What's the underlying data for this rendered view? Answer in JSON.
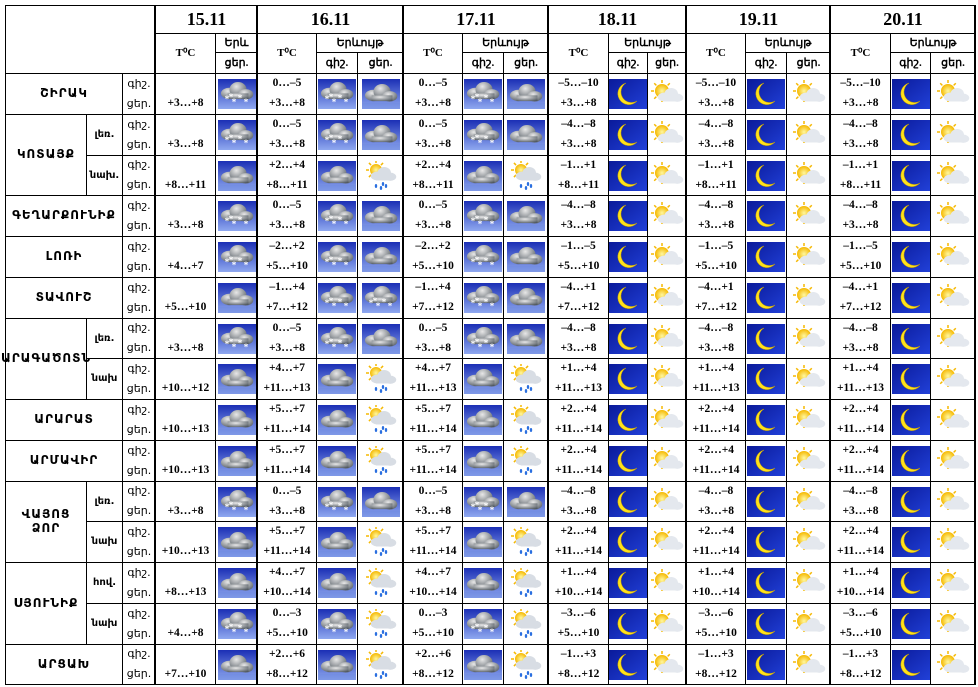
{
  "dates": [
    {
      "date": "15.11",
      "temp": "T⁰C",
      "phen": "Երև",
      "day": "ցեր."
    },
    {
      "date": "16.11",
      "temp": "T⁰C",
      "phen": "Երևույթ",
      "night": "գիշ.",
      "day": "ցեր."
    },
    {
      "date": "17.11",
      "temp": "T⁰C",
      "phen": "Երևույթ",
      "night": "գիշ.",
      "day": "ցեր."
    },
    {
      "date": "18.11",
      "temp": "T⁰C",
      "phen": "Երևույթ",
      "night": "գիշ.",
      "day": "ցեր."
    },
    {
      "date": "19.11",
      "temp": "T⁰C",
      "phen": "Երևույթ",
      "night": "գիշ.",
      "day": "ցեր."
    },
    {
      "date": "20.11",
      "temp": "T⁰C",
      "phen": "Երևույթ",
      "night": "գիշ.",
      "day": "ցեր."
    }
  ],
  "regions": [
    {
      "name": "ՇԻՐԱԿ",
      "parts": [
        {
          "labels": [
            "գիշ.",
            "ցեր."
          ],
          "t15": "+3…+8",
          "temps": [
            [
              "0…–5",
              "+3…+8"
            ],
            [
              "0…–5",
              "+3…+8"
            ],
            [
              "–5…–10",
              "+3…+8"
            ],
            [
              "–5…–10",
              "+3…+8"
            ],
            [
              "–5…–10",
              "+3…+8"
            ]
          ]
        }
      ]
    },
    {
      "name": "ԿՈՏԱՅՔ",
      "parts": [
        {
          "zone": "լեռ.",
          "labels": [
            "գիշ.",
            "ցեր."
          ],
          "t15": "+3…+8",
          "temps": [
            [
              "0…–5",
              "+3…+8"
            ],
            [
              "0…–5",
              "+3…+8"
            ],
            [
              "–4…–8",
              "+3…+8"
            ],
            [
              "–4…–8",
              "+3…+8"
            ],
            [
              "–4…–8",
              "+3…+8"
            ]
          ]
        },
        {
          "zone": "նախ.",
          "labels": [
            "գիշ.",
            "ցեր."
          ],
          "t15": "+8…+11",
          "temps": [
            [
              "+2…+4",
              "+8…+11"
            ],
            [
              "+2…+4",
              "+8…+11"
            ],
            [
              "–1…+1",
              "+8…+11"
            ],
            [
              "–1…+1",
              "+8…+11"
            ],
            [
              "–1…+1",
              "+8…+11"
            ]
          ]
        }
      ]
    },
    {
      "name": "ԳԵՂԱՐՔՈՒՆԻՔ",
      "parts": [
        {
          "labels": [
            "գիշ.",
            "ցեր."
          ],
          "t15": "+3…+8",
          "temps": [
            [
              "0…–5",
              "+3…+8"
            ],
            [
              "0…–5",
              "+3…+8"
            ],
            [
              "–4…–8",
              "+3…+8"
            ],
            [
              "–4…–8",
              "+3…+8"
            ],
            [
              "–4…–8",
              "+3…+8"
            ]
          ]
        }
      ]
    },
    {
      "name": "ԼՈՌԻ",
      "parts": [
        {
          "labels": [
            "գիշ.",
            "ցեր."
          ],
          "t15": "+4…+7",
          "temps": [
            [
              "–2…+2",
              "+5…+10"
            ],
            [
              "–2…+2",
              "+5…+10"
            ],
            [
              "–1…–5",
              "+5…+10"
            ],
            [
              "–1…–5",
              "+5…+10"
            ],
            [
              "–1…–5",
              "+5…+10"
            ]
          ]
        }
      ]
    },
    {
      "name": "ՏԱՎՈՒՇ",
      "parts": [
        {
          "labels": [
            "գիշ.",
            "ցեր."
          ],
          "t15": "+5…+10",
          "temps": [
            [
              "–1…+4",
              "+7…+12"
            ],
            [
              "–1…+4",
              "+7…+12"
            ],
            [
              "–4…+1",
              "+7…+12"
            ],
            [
              "–4…+1",
              "+7…+12"
            ],
            [
              "–4…+1",
              "+7…+12"
            ]
          ]
        }
      ]
    },
    {
      "name": "ԱՐԱԳԱԾՈՏՆ",
      "parts": [
        {
          "zone": "լեռ.",
          "labels": [
            "գիշ.",
            "ցեր."
          ],
          "t15": "+3…+8",
          "temps": [
            [
              "0…–5",
              "+3…+8"
            ],
            [
              "0…–5",
              "+3…+8"
            ],
            [
              "–4…–8",
              "+3…+8"
            ],
            [
              "–4…–8",
              "+3…+8"
            ],
            [
              "–4…–8",
              "+3…+8"
            ]
          ]
        },
        {
          "zone": "նախ",
          "labels": [
            "գիշ.",
            "ցեր."
          ],
          "t15": "+10…+12",
          "temps": [
            [
              "+4…+7",
              "+11…+13"
            ],
            [
              "+4…+7",
              "+11…+13"
            ],
            [
              "+1…+4",
              "+11…+13"
            ],
            [
              "+1…+4",
              "+11…+13"
            ],
            [
              "+1…+4",
              "+11…+13"
            ]
          ]
        }
      ]
    },
    {
      "name": "ԱՐԱՐԱՏ",
      "parts": [
        {
          "labels": [
            "գիշ.",
            "ցեր."
          ],
          "t15": "+10…+13",
          "temps": [
            [
              "+5…+7",
              "+11…+14"
            ],
            [
              "+5…+7",
              "+11…+14"
            ],
            [
              "+2…+4",
              "+11…+14"
            ],
            [
              "+2…+4",
              "+11…+14"
            ],
            [
              "+2…+4",
              "+11…+14"
            ]
          ]
        }
      ]
    },
    {
      "name": "ԱՐՄԱՎԻՐ",
      "parts": [
        {
          "labels": [
            "գիշ.",
            "ցեր."
          ],
          "t15": "+10…+13",
          "temps": [
            [
              "+5…+7",
              "+11…+14"
            ],
            [
              "+5…+7",
              "+11…+14"
            ],
            [
              "+2…+4",
              "+11…+14"
            ],
            [
              "+2…+4",
              "+11…+14"
            ],
            [
              "+2…+4",
              "+11…+14"
            ]
          ]
        }
      ]
    },
    {
      "name": "ՎԱՅՈՑ ՁՈՐ",
      "parts": [
        {
          "zone": "լեռ.",
          "labels": [
            "գիշ.",
            "ցեր."
          ],
          "t15": "+3…+8",
          "temps": [
            [
              "0…–5",
              "+3…+8"
            ],
            [
              "0…–5",
              "+3…+8"
            ],
            [
              "–4…–8",
              "+3…+8"
            ],
            [
              "–4…–8",
              "+3…+8"
            ],
            [
              "–4…–8",
              "+3…+8"
            ]
          ]
        },
        {
          "zone": "նախ",
          "labels": [
            "գիշ.",
            "ցեր."
          ],
          "t15": "+10…+13",
          "temps": [
            [
              "+5…+7",
              "+11…+14"
            ],
            [
              "+5…+7",
              "+11…+14"
            ],
            [
              "+2…+4",
              "+11…+14"
            ],
            [
              "+2…+4",
              "+11…+14"
            ],
            [
              "+2…+4",
              "+11…+14"
            ]
          ]
        }
      ]
    },
    {
      "name": "ՍՅՈՒՆԻՔ",
      "parts": [
        {
          "zone": "հով.",
          "labels": [
            "գիշ.",
            "ցեր."
          ],
          "t15": "+8…+13",
          "temps": [
            [
              "+4…+7",
              "+10…+14"
            ],
            [
              "+4…+7",
              "+10…+14"
            ],
            [
              "+1…+4",
              "+10…+14"
            ],
            [
              "+1…+4",
              "+10…+14"
            ],
            [
              "+1…+4",
              "+10…+14"
            ]
          ]
        },
        {
          "zone": "նախ",
          "labels": [
            "գիշ.",
            "ցեր."
          ],
          "t15": "+4…+8",
          "temps": [
            [
              "0…–3",
              "+5…+10"
            ],
            [
              "0…–3",
              "+5…+10"
            ],
            [
              "–3…–6",
              "+5…+10"
            ],
            [
              "–3…–6",
              "+5…+10"
            ],
            [
              "–3…–6",
              "+5…+10"
            ]
          ]
        }
      ]
    },
    {
      "name": "ԱՐՑԱԽ",
      "parts": [
        {
          "labels": [
            "գիշ.",
            "ցեր."
          ],
          "t15": "+7…+10",
          "temps": [
            [
              "+2…+6",
              "+8…+12"
            ],
            [
              "+2…+6",
              "+8…+12"
            ],
            [
              "–1…+3",
              "+8…+12"
            ],
            [
              "–1…+3",
              "+8…+12"
            ],
            [
              "–1…+3",
              "+8…+12"
            ]
          ]
        }
      ]
    }
  ]
}
